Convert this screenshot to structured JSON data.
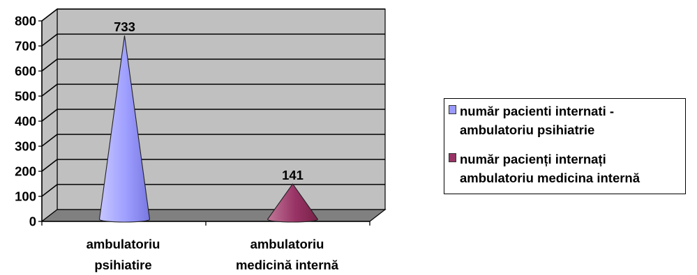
{
  "chart_data": {
    "type": "bar",
    "style": "3d-cone",
    "categories": [
      "ambulatoriu psihiatire",
      "ambulatoriu medicină internă"
    ],
    "x_tick_lines": [
      [
        "ambulatoriu",
        "psihiatire"
      ],
      [
        "ambulatoriu",
        "medicină internă"
      ]
    ],
    "series": [
      {
        "name": "număr pacienti internati - ambulatoriu psihiatrie",
        "values": [
          733,
          0
        ],
        "color": "#9999ff"
      },
      {
        "name": "număr pacienți internați ambulatoriu medicina internă",
        "values": [
          0,
          141
        ],
        "color": "#993366"
      }
    ],
    "data_labels": [
      "733",
      "141"
    ],
    "y_ticks": [
      0,
      100,
      200,
      300,
      400,
      500,
      600,
      700,
      800
    ],
    "ylim": [
      0,
      800
    ],
    "grid": true,
    "legend_position": "right",
    "colors": {
      "wall": "#c0c0c0",
      "floor": "#808080",
      "grid": "#000000"
    }
  }
}
